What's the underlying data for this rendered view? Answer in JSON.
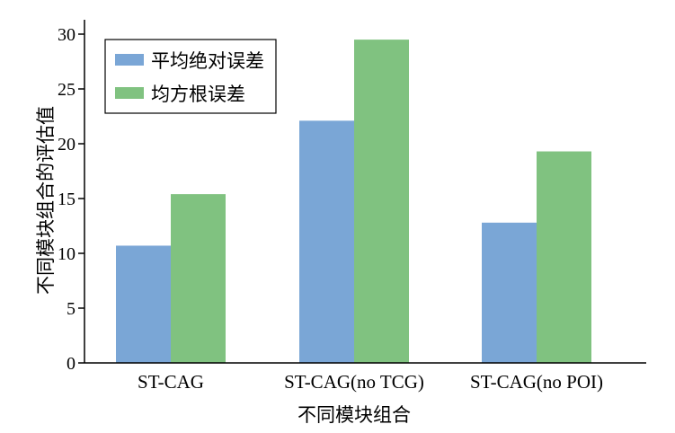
{
  "chart_data": {
    "type": "bar",
    "categories": [
      "ST-CAG",
      "ST-CAG(no TCG)",
      "ST-CAG(no POI)"
    ],
    "series": [
      {
        "name": "平均绝对误差",
        "values": [
          10.7,
          22.1,
          12.8
        ],
        "color": "#7aa6d6"
      },
      {
        "name": "均方根误差",
        "values": [
          15.4,
          29.5,
          19.3
        ],
        "color": "#80c280"
      }
    ],
    "xlabel": "不同模块组合",
    "ylabel": "不同模块组合的评估值",
    "ylim": [
      0,
      30
    ],
    "yticks": [
      0,
      5,
      10,
      15,
      20,
      25,
      30
    ],
    "grid": false,
    "legend_position": "top-left"
  }
}
